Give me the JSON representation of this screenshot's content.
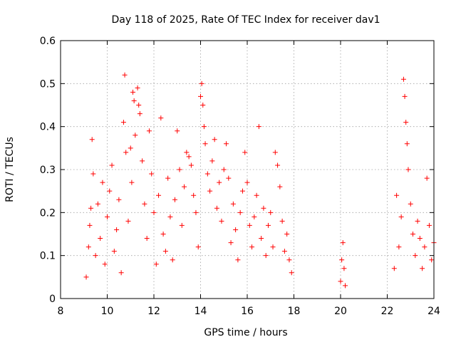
{
  "chart_data": {
    "type": "scatter",
    "title": "Day 118 of 2025, Rate Of TEC Index for receiver dav1",
    "xlabel": "GPS time / hours",
    "ylabel": "ROTI / TECUs",
    "xlim": [
      8,
      24
    ],
    "ylim": [
      0,
      0.6
    ],
    "xticks": [
      "8",
      "10",
      "12",
      "14",
      "16",
      "18",
      "20",
      "22",
      "24"
    ],
    "yticks": [
      "0",
      "0.1",
      "0.2",
      "0.3",
      "0.4",
      "0.5",
      "0.6"
    ],
    "grid": true,
    "marker": "+",
    "color": "#ff0000",
    "series": [
      {
        "points": [
          [
            9.1,
            0.05
          ],
          [
            9.2,
            0.12
          ],
          [
            9.25,
            0.17
          ],
          [
            9.3,
            0.21
          ],
          [
            9.35,
            0.37
          ],
          [
            9.4,
            0.29
          ],
          [
            9.5,
            0.1
          ],
          [
            9.6,
            0.22
          ],
          [
            9.7,
            0.14
          ],
          [
            9.8,
            0.27
          ],
          [
            9.9,
            0.08
          ],
          [
            10.0,
            0.19
          ],
          [
            10.1,
            0.25
          ],
          [
            10.2,
            0.31
          ],
          [
            10.3,
            0.11
          ],
          [
            10.4,
            0.16
          ],
          [
            10.5,
            0.23
          ],
          [
            10.6,
            0.06
          ],
          [
            10.7,
            0.41
          ],
          [
            10.75,
            0.52
          ],
          [
            10.8,
            0.34
          ],
          [
            10.9,
            0.18
          ],
          [
            11.0,
            0.35
          ],
          [
            11.05,
            0.27
          ],
          [
            11.1,
            0.48
          ],
          [
            11.15,
            0.46
          ],
          [
            11.2,
            0.38
          ],
          [
            11.3,
            0.49
          ],
          [
            11.35,
            0.45
          ],
          [
            11.4,
            0.43
          ],
          [
            11.5,
            0.32
          ],
          [
            11.6,
            0.22
          ],
          [
            11.7,
            0.14
          ],
          [
            11.8,
            0.39
          ],
          [
            11.9,
            0.29
          ],
          [
            12.0,
            0.2
          ],
          [
            12.1,
            0.08
          ],
          [
            12.2,
            0.24
          ],
          [
            12.3,
            0.42
          ],
          [
            12.4,
            0.15
          ],
          [
            12.5,
            0.11
          ],
          [
            12.6,
            0.28
          ],
          [
            12.7,
            0.19
          ],
          [
            12.8,
            0.09
          ],
          [
            12.9,
            0.23
          ],
          [
            13.0,
            0.39
          ],
          [
            13.1,
            0.3
          ],
          [
            13.2,
            0.17
          ],
          [
            13.3,
            0.26
          ],
          [
            13.4,
            0.34
          ],
          [
            13.5,
            0.33
          ],
          [
            13.6,
            0.31
          ],
          [
            13.7,
            0.24
          ],
          [
            13.8,
            0.2
          ],
          [
            13.9,
            0.12
          ],
          [
            14.0,
            0.47
          ],
          [
            14.05,
            0.5
          ],
          [
            14.1,
            0.45
          ],
          [
            14.15,
            0.4
          ],
          [
            14.2,
            0.36
          ],
          [
            14.3,
            0.29
          ],
          [
            14.4,
            0.25
          ],
          [
            14.5,
            0.32
          ],
          [
            14.6,
            0.37
          ],
          [
            14.7,
            0.21
          ],
          [
            14.8,
            0.27
          ],
          [
            14.9,
            0.18
          ],
          [
            15.0,
            0.3
          ],
          [
            15.1,
            0.36
          ],
          [
            15.2,
            0.28
          ],
          [
            15.3,
            0.13
          ],
          [
            15.4,
            0.22
          ],
          [
            15.5,
            0.16
          ],
          [
            15.6,
            0.09
          ],
          [
            15.7,
            0.2
          ],
          [
            15.8,
            0.25
          ],
          [
            15.9,
            0.34
          ],
          [
            16.0,
            0.27
          ],
          [
            16.1,
            0.17
          ],
          [
            16.2,
            0.12
          ],
          [
            16.3,
            0.19
          ],
          [
            16.4,
            0.24
          ],
          [
            16.5,
            0.4
          ],
          [
            16.6,
            0.14
          ],
          [
            16.7,
            0.21
          ],
          [
            16.8,
            0.1
          ],
          [
            16.9,
            0.17
          ],
          [
            17.0,
            0.2
          ],
          [
            17.1,
            0.12
          ],
          [
            17.2,
            0.34
          ],
          [
            17.3,
            0.31
          ],
          [
            17.4,
            0.26
          ],
          [
            17.5,
            0.18
          ],
          [
            17.6,
            0.11
          ],
          [
            17.7,
            0.15
          ],
          [
            17.8,
            0.09
          ],
          [
            17.9,
            0.06
          ],
          [
            20.0,
            0.04
          ],
          [
            20.05,
            0.09
          ],
          [
            20.1,
            0.13
          ],
          [
            20.15,
            0.07
          ],
          [
            20.2,
            0.03
          ],
          [
            22.3,
            0.07
          ],
          [
            22.4,
            0.24
          ],
          [
            22.5,
            0.12
          ],
          [
            22.6,
            0.19
          ],
          [
            22.7,
            0.51
          ],
          [
            22.75,
            0.47
          ],
          [
            22.8,
            0.41
          ],
          [
            22.85,
            0.36
          ],
          [
            22.9,
            0.3
          ],
          [
            23.0,
            0.22
          ],
          [
            23.1,
            0.15
          ],
          [
            23.2,
            0.1
          ],
          [
            23.3,
            0.18
          ],
          [
            23.4,
            0.14
          ],
          [
            23.5,
            0.07
          ],
          [
            23.6,
            0.12
          ],
          [
            23.7,
            0.28
          ],
          [
            23.8,
            0.17
          ],
          [
            23.9,
            0.09
          ],
          [
            24.0,
            0.13
          ]
        ]
      }
    ]
  }
}
